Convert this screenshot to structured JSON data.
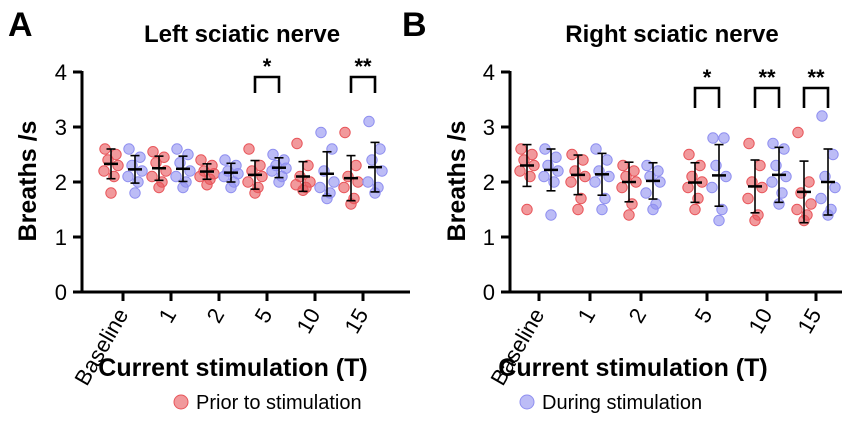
{
  "legend": {
    "prior_label": "Prior to stimulation",
    "during_label": "During stimulation"
  },
  "colors": {
    "prior": "#e8555a",
    "during": "#8f8ff0",
    "axis": "#000000"
  },
  "chart_data": [
    {
      "type": "scatter",
      "letter": "A",
      "title": "Left sciatic nerve",
      "xlabel": "Current stimulation (T)",
      "ylabel": "Breaths /s",
      "ylim": [
        0,
        4
      ],
      "yticks": [
        "0",
        "1",
        "2",
        "3",
        "4"
      ],
      "categories": [
        "Baseline",
        "1",
        "2",
        "5",
        "10",
        "15"
      ],
      "series": [
        {
          "name": "Prior to stimulation",
          "points": [
            [
              2.6,
              2.5,
              2.4,
              2.3,
              2.2,
              2.1,
              1.8
            ],
            [
              2.55,
              2.45,
              2.35,
              2.2,
              2.1,
              2.0,
              1.9
            ],
            [
              2.4,
              2.3,
              2.2,
              2.15,
              2.1,
              2.05,
              1.95
            ],
            [
              2.6,
              2.3,
              2.2,
              2.1,
              2.0,
              1.9,
              1.8
            ],
            [
              2.7,
              2.3,
              2.1,
              2.0,
              1.95,
              1.9,
              1.85
            ],
            [
              2.9,
              2.3,
              2.1,
              2.0,
              1.9,
              1.7,
              1.6
            ]
          ],
          "mean": [
            2.33,
            2.25,
            2.19,
            2.13,
            2.1,
            2.07
          ],
          "sd": [
            0.27,
            0.22,
            0.14,
            0.26,
            0.27,
            0.41
          ]
        },
        {
          "name": "During stimulation",
          "points": [
            [
              2.6,
              2.45,
              2.3,
              2.2,
              2.1,
              2.0,
              1.8
            ],
            [
              2.6,
              2.5,
              2.35,
              2.2,
              2.1,
              2.0,
              1.9
            ],
            [
              2.4,
              2.3,
              2.2,
              2.15,
              2.1,
              2.0,
              1.9
            ],
            [
              2.5,
              2.4,
              2.3,
              2.25,
              2.2,
              2.1,
              2.0
            ],
            [
              2.9,
              2.6,
              2.2,
              2.0,
              1.9,
              1.8,
              1.7
            ],
            [
              3.1,
              2.6,
              2.4,
              2.2,
              2.0,
              1.9,
              1.8
            ]
          ],
          "mean": [
            2.23,
            2.24,
            2.17,
            2.26,
            2.15,
            2.27
          ],
          "sd": [
            0.25,
            0.23,
            0.17,
            0.18,
            0.4,
            0.45
          ]
        }
      ],
      "significance": [
        {
          "category": "5",
          "label": "*"
        },
        {
          "category": "15",
          "label": "**"
        }
      ]
    },
    {
      "type": "scatter",
      "letter": "B",
      "title": "Right sciatic nerve",
      "xlabel": "Current stimulation (T)",
      "ylabel": "Breaths /s",
      "ylim": [
        0,
        4
      ],
      "yticks": [
        "0",
        "1",
        "2",
        "3",
        "4"
      ],
      "categories": [
        "Baseline",
        "1",
        "2",
        "5",
        "10",
        "15"
      ],
      "series": [
        {
          "name": "Prior to stimulation",
          "points": [
            [
              2.6,
              2.5,
              2.4,
              2.3,
              2.2,
              2.1,
              1.5
            ],
            [
              2.5,
              2.4,
              2.2,
              2.1,
              2.0,
              1.7,
              1.5
            ],
            [
              2.3,
              2.2,
              2.1,
              2.0,
              1.9,
              1.6,
              1.4
            ],
            [
              2.5,
              2.3,
              2.1,
              2.0,
              1.9,
              1.7,
              1.5
            ],
            [
              2.7,
              2.3,
              2.0,
              1.9,
              1.7,
              1.4,
              1.3
            ],
            [
              2.9,
              2.0,
              1.8,
              1.6,
              1.5,
              1.4,
              1.3
            ]
          ],
          "mean": [
            2.3,
            2.13,
            2.0,
            1.99,
            1.92,
            1.82
          ],
          "sd": [
            0.38,
            0.36,
            0.36,
            0.36,
            0.48,
            0.56
          ]
        },
        {
          "name": "During stimulation",
          "points": [
            [
              2.6,
              2.45,
              2.3,
              2.2,
              2.1,
              2.0,
              1.4
            ],
            [
              2.6,
              2.4,
              2.2,
              2.1,
              2.0,
              1.7,
              1.5
            ],
            [
              2.3,
              2.2,
              2.1,
              2.0,
              1.8,
              1.6,
              1.5
            ],
            [
              2.8,
              2.8,
              2.3,
              2.1,
              1.9,
              1.5,
              1.3
            ],
            [
              2.7,
              2.6,
              2.3,
              2.1,
              2.0,
              1.8,
              1.6
            ],
            [
              3.2,
              2.5,
              2.1,
              1.9,
              1.7,
              1.5,
              1.4
            ]
          ],
          "mean": [
            2.22,
            2.14,
            2.02,
            2.12,
            2.13,
            2.0
          ],
          "sd": [
            0.38,
            0.38,
            0.33,
            0.56,
            0.5,
            0.6
          ]
        }
      ],
      "significance": [
        {
          "category": "5",
          "label": "*"
        },
        {
          "category": "10",
          "label": "**"
        },
        {
          "category": "15",
          "label": "**"
        }
      ]
    }
  ]
}
